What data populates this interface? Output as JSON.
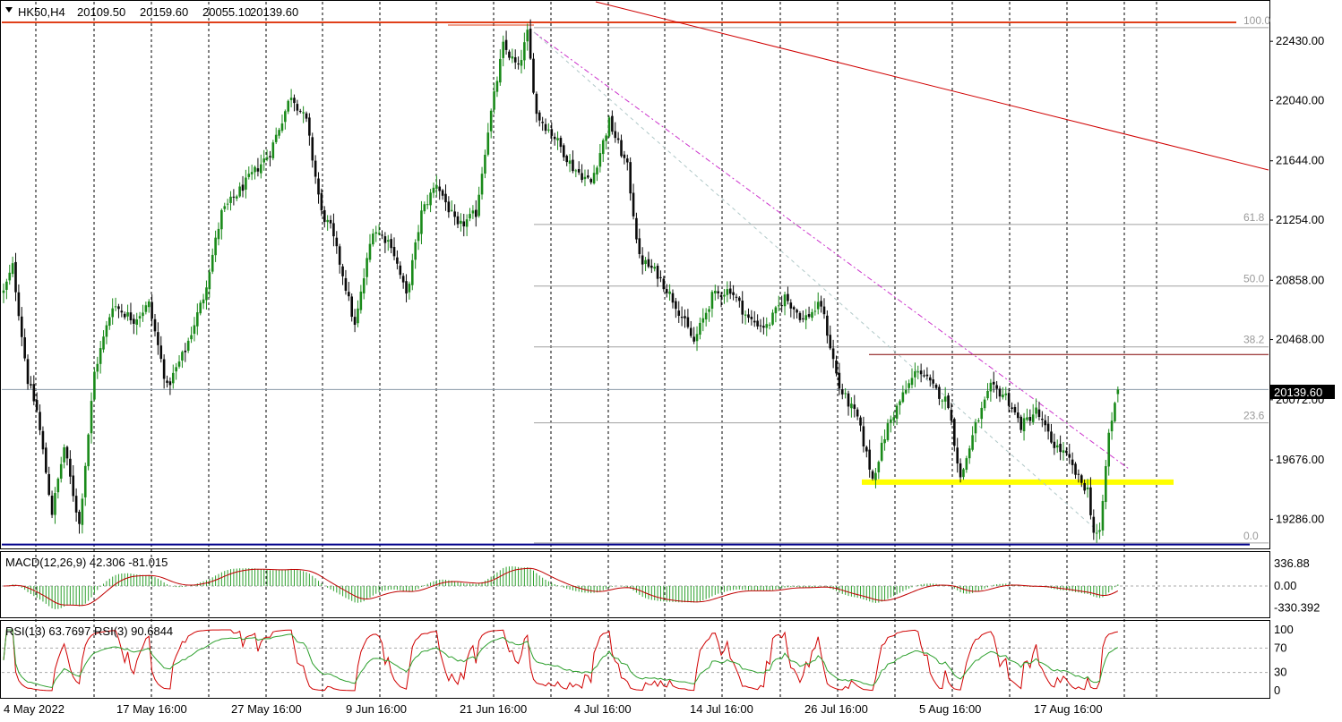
{
  "header": {
    "symbol": "HK50,H4",
    "open": "20109.50",
    "high": "20159.60",
    "low": "20055.10",
    "close": "20139.60"
  },
  "price_axis": {
    "ticks": [
      "22430.00",
      "22040.00",
      "21644.00",
      "21254.00",
      "20858.00",
      "20468.00",
      "20072.00",
      "19676.00",
      "19286.00"
    ],
    "current_price_label": "20139.60"
  },
  "fibonacci": {
    "levels": [
      "100.0",
      "61.8",
      "50.0",
      "38.2",
      "23.6",
      "0.0"
    ]
  },
  "time_axis": {
    "labels": [
      "4 May 2022",
      "17 May 16:00",
      "27 May 16:00",
      "9 Jun 16:00",
      "21 Jun 16:00",
      "4 Jul 16:00",
      "14 Jul 16:00",
      "26 Jul 16:00",
      "5 Aug 16:00",
      "17 Aug 16:00"
    ]
  },
  "macd": {
    "label": "MACD(12,26,9) 42.306 -81.015",
    "ticks": [
      "336.88",
      "0.00",
      "-330.392"
    ]
  },
  "rsi": {
    "label": "RSI(13) 63.7697  RSI(3) 90.6844",
    "ticks": [
      "100",
      "70",
      "30",
      "0"
    ]
  },
  "colors": {
    "bull_candle": "#1a8a1a",
    "bear_candle": "#0a0a0a",
    "support_line": "#ffff00",
    "bottom_line": "#00008b",
    "top_line": "#e0401a",
    "trend_line": "#d00000",
    "dashed_trend": "#cc33cc",
    "macd_hist": "#2ea02e",
    "macd_signal": "#c00000",
    "rsi_fast": "#d00000",
    "rsi_slow": "#2ea02e",
    "fib_level": "#a0a0a0"
  },
  "chart_data": {
    "type": "candlestick",
    "symbol": "HK50",
    "timeframe": "H4",
    "last_bar": {
      "open": 20109.5,
      "high": 20159.6,
      "low": 20055.1,
      "close": 20139.6
    },
    "price_range": [
      19100,
      22690
    ],
    "fib_retracement": {
      "high": 22520,
      "low": 19130,
      "levels": [
        {
          "ratio": "100.0",
          "price": 22520
        },
        {
          "ratio": "61.8",
          "price": 21225
        },
        {
          "ratio": "50.0",
          "price": 20820
        },
        {
          "ratio": "38.2",
          "price": 20420
        },
        {
          "ratio": "23.6",
          "price": 19920
        },
        {
          "ratio": "0.0",
          "price": 19130
        }
      ]
    },
    "horizontal_lines": [
      {
        "name": "resistance",
        "price": 20370
      },
      {
        "name": "support",
        "price": 19530
      },
      {
        "name": "top",
        "price": 22555
      },
      {
        "name": "bottom",
        "price": 19120
      }
    ],
    "path_points": [
      {
        "bar": 0,
        "price": 20780
      },
      {
        "bar": 3,
        "price": 20950
      },
      {
        "bar": 8,
        "price": 20200
      },
      {
        "bar": 11,
        "price": 20000
      },
      {
        "bar": 16,
        "price": 19330
      },
      {
        "bar": 20,
        "price": 19760
      },
      {
        "bar": 25,
        "price": 19250
      },
      {
        "bar": 30,
        "price": 20250
      },
      {
        "bar": 36,
        "price": 20700
      },
      {
        "bar": 43,
        "price": 20600
      },
      {
        "bar": 48,
        "price": 20700
      },
      {
        "bar": 54,
        "price": 20150
      },
      {
        "bar": 60,
        "price": 20400
      },
      {
        "bar": 66,
        "price": 20750
      },
      {
        "bar": 72,
        "price": 21300
      },
      {
        "bar": 80,
        "price": 21500
      },
      {
        "bar": 88,
        "price": 21700
      },
      {
        "bar": 95,
        "price": 22080
      },
      {
        "bar": 100,
        "price": 21900
      },
      {
        "bar": 105,
        "price": 21300
      },
      {
        "bar": 108,
        "price": 21200
      },
      {
        "bar": 112,
        "price": 20900
      },
      {
        "bar": 116,
        "price": 20550
      },
      {
        "bar": 122,
        "price": 21200
      },
      {
        "bar": 128,
        "price": 21100
      },
      {
        "bar": 133,
        "price": 20750
      },
      {
        "bar": 138,
        "price": 21300
      },
      {
        "bar": 143,
        "price": 21500
      },
      {
        "bar": 150,
        "price": 21200
      },
      {
        "bar": 156,
        "price": 21300
      },
      {
        "bar": 160,
        "price": 21850
      },
      {
        "bar": 165,
        "price": 22400
      },
      {
        "bar": 170,
        "price": 22250
      },
      {
        "bar": 173,
        "price": 22480
      },
      {
        "bar": 176,
        "price": 21950
      },
      {
        "bar": 182,
        "price": 21800
      },
      {
        "bar": 188,
        "price": 21600
      },
      {
        "bar": 194,
        "price": 21500
      },
      {
        "bar": 200,
        "price": 21900
      },
      {
        "bar": 206,
        "price": 21600
      },
      {
        "bar": 210,
        "price": 21000
      },
      {
        "bar": 216,
        "price": 20900
      },
      {
        "bar": 222,
        "price": 20700
      },
      {
        "bar": 228,
        "price": 20450
      },
      {
        "bar": 234,
        "price": 20750
      },
      {
        "bar": 240,
        "price": 20800
      },
      {
        "bar": 246,
        "price": 20600
      },
      {
        "bar": 252,
        "price": 20550
      },
      {
        "bar": 258,
        "price": 20750
      },
      {
        "bar": 264,
        "price": 20600
      },
      {
        "bar": 270,
        "price": 20700
      },
      {
        "bar": 276,
        "price": 20150
      },
      {
        "bar": 282,
        "price": 19950
      },
      {
        "bar": 287,
        "price": 19550
      },
      {
        "bar": 292,
        "price": 19900
      },
      {
        "bar": 297,
        "price": 20100
      },
      {
        "bar": 302,
        "price": 20280
      },
      {
        "bar": 307,
        "price": 20150
      },
      {
        "bar": 312,
        "price": 20050
      },
      {
        "bar": 316,
        "price": 19550
      },
      {
        "bar": 321,
        "price": 19900
      },
      {
        "bar": 326,
        "price": 20150
      },
      {
        "bar": 331,
        "price": 20100
      },
      {
        "bar": 336,
        "price": 19900
      },
      {
        "bar": 341,
        "price": 20000
      },
      {
        "bar": 346,
        "price": 19800
      },
      {
        "bar": 351,
        "price": 19700
      },
      {
        "bar": 355,
        "price": 19550
      },
      {
        "bar": 358,
        "price": 19480
      },
      {
        "bar": 360,
        "price": 19200
      },
      {
        "bar": 362,
        "price": 19180
      },
      {
        "bar": 365,
        "price": 19850
      },
      {
        "bar": 368,
        "price": 20130
      }
    ]
  }
}
